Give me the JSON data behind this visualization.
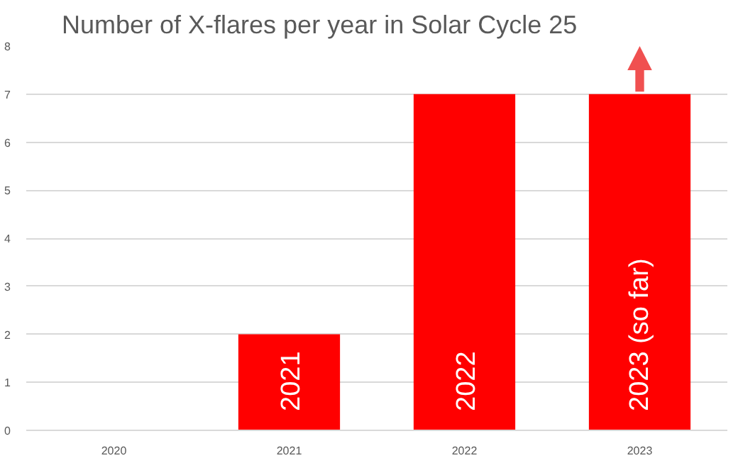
{
  "chart_data": {
    "type": "bar",
    "title": "Number of X-flares per year in Solar Cycle 25",
    "categories": [
      "2020",
      "2021",
      "2022",
      "2023"
    ],
    "values": [
      0,
      2,
      7,
      7
    ],
    "color": "#ff0000",
    "ylim": [
      0,
      8
    ],
    "yticks": [
      0,
      1,
      2,
      3,
      4,
      5,
      6,
      7,
      8
    ],
    "grid": "y",
    "annotations": [
      "2021",
      "2022",
      "2023 (so far)"
    ]
  }
}
